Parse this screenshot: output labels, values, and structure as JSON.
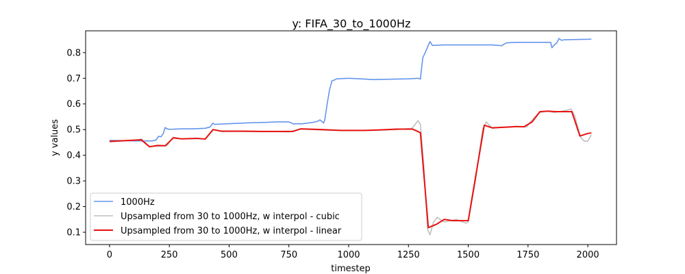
{
  "chart_data": {
    "type": "line",
    "title": "y: FIFA_30_to_1000Hz",
    "xlabel": "timestep",
    "ylabel": "y values",
    "xlim": [
      -100,
      2120
    ],
    "ylim": [
      0.052,
      0.885
    ],
    "xticks": [
      0,
      250,
      500,
      750,
      1000,
      1250,
      1500,
      1750,
      2000
    ],
    "yticks": [
      0.1,
      0.2,
      0.3,
      0.4,
      0.5,
      0.6,
      0.7,
      0.8
    ],
    "grid": false,
    "legend_position": "lower-left",
    "series": [
      {
        "name": "1000Hz",
        "color": "#6495ed",
        "x": [
          0,
          50,
          100,
          150,
          180,
          195,
          205,
          215,
          225,
          232,
          240,
          250,
          300,
          350,
          400,
          420,
          432,
          440,
          450,
          500,
          550,
          600,
          650,
          700,
          750,
          770,
          790,
          800,
          850,
          870,
          880,
          895,
          900,
          910,
          920,
          930,
          940,
          950,
          1000,
          1050,
          1100,
          1150,
          1200,
          1250,
          1290,
          1300,
          1305,
          1310,
          1320,
          1330,
          1340,
          1350,
          1400,
          1500,
          1600,
          1640,
          1650,
          1660,
          1700,
          1750,
          1800,
          1845,
          1850,
          1860,
          1870,
          1880,
          1890,
          1900,
          1950,
          2000,
          2015
        ],
        "values": [
          0.458,
          0.457,
          0.456,
          0.456,
          0.456,
          0.46,
          0.474,
          0.472,
          0.485,
          0.508,
          0.503,
          0.501,
          0.503,
          0.503,
          0.505,
          0.51,
          0.525,
          0.52,
          0.521,
          0.523,
          0.525,
          0.527,
          0.528,
          0.53,
          0.53,
          0.522,
          0.523,
          0.522,
          0.528,
          0.532,
          0.538,
          0.526,
          0.537,
          0.6,
          0.655,
          0.69,
          0.693,
          0.698,
          0.7,
          0.698,
          0.695,
          0.696,
          0.697,
          0.698,
          0.7,
          0.697,
          0.74,
          0.78,
          0.8,
          0.822,
          0.843,
          0.828,
          0.83,
          0.83,
          0.83,
          0.827,
          0.833,
          0.838,
          0.84,
          0.84,
          0.84,
          0.84,
          0.819,
          0.83,
          0.838,
          0.855,
          0.848,
          0.85,
          0.851,
          0.852,
          0.853
        ]
      },
      {
        "name": "Upsampled from 30 to 1000Hz, w interpol - cubic",
        "color": "#bfbfbf",
        "x": [
          0,
          50,
          100,
          135,
          165,
          200,
          240,
          265,
          300,
          350,
          400,
          433,
          470,
          500,
          600,
          700,
          750,
          800,
          900,
          1000,
          1100,
          1200,
          1265,
          1290,
          1300,
          1315,
          1330,
          1340,
          1355,
          1370,
          1400,
          1450,
          1490,
          1500,
          1530,
          1560,
          1575,
          1600,
          1650,
          1700,
          1745,
          1760,
          1790,
          1800,
          1830,
          1860,
          1900,
          1930,
          1945,
          1970,
          1985,
          2000,
          2015
        ],
        "values": [
          0.452,
          0.455,
          0.458,
          0.463,
          0.435,
          0.435,
          0.437,
          0.47,
          0.464,
          0.465,
          0.463,
          0.5,
          0.492,
          0.493,
          0.492,
          0.492,
          0.491,
          0.502,
          0.498,
          0.496,
          0.497,
          0.5,
          0.505,
          0.535,
          0.52,
          0.35,
          0.11,
          0.09,
          0.14,
          0.158,
          0.14,
          0.15,
          0.135,
          0.14,
          0.3,
          0.5,
          0.53,
          0.505,
          0.51,
          0.512,
          0.51,
          0.53,
          0.56,
          0.567,
          0.572,
          0.567,
          0.573,
          0.58,
          0.555,
          0.47,
          0.455,
          0.455,
          0.48
        ]
      },
      {
        "name": "Upsampled from 30 to 1000Hz, w interpol - linear",
        "color": "#e8100e",
        "x": [
          0,
          67,
          133,
          167,
          200,
          233,
          267,
          300,
          367,
          400,
          433,
          467,
          500,
          567,
          633,
          700,
          767,
          800,
          867,
          967,
          1067,
          1133,
          1200,
          1267,
          1300,
          1333,
          1367,
          1400,
          1433,
          1467,
          1500,
          1567,
          1600,
          1667,
          1700,
          1733,
          1767,
          1800,
          1833,
          1867,
          1900,
          1933,
          1967,
          2000,
          2015
        ],
        "values": [
          0.454,
          0.457,
          0.46,
          0.433,
          0.438,
          0.437,
          0.468,
          0.464,
          0.466,
          0.463,
          0.5,
          0.494,
          0.494,
          0.494,
          0.493,
          0.493,
          0.493,
          0.503,
          0.501,
          0.497,
          0.497,
          0.499,
          0.502,
          0.502,
          0.488,
          0.118,
          0.131,
          0.15,
          0.145,
          0.145,
          0.145,
          0.517,
          0.507,
          0.51,
          0.512,
          0.511,
          0.53,
          0.57,
          0.572,
          0.57,
          0.57,
          0.57,
          0.475,
          0.485,
          0.487
        ]
      }
    ]
  }
}
